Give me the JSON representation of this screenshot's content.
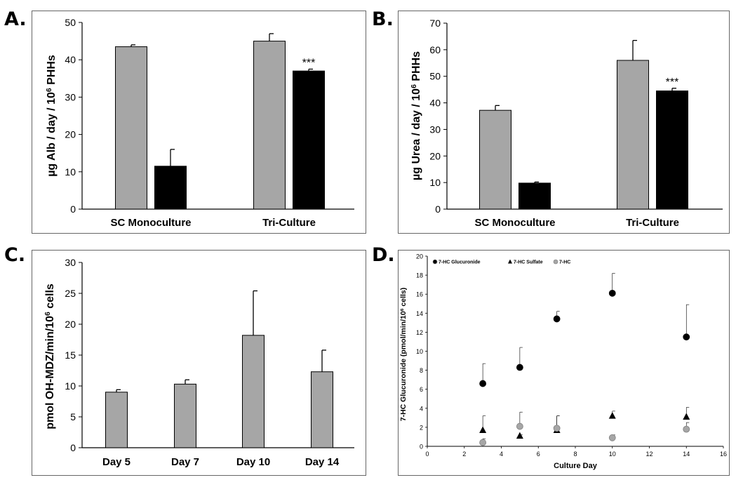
{
  "panel_letters": {
    "a": "A.",
    "b": "B.",
    "c": "C.",
    "d": "D."
  },
  "colors": {
    "gray_bar": "#a6a6a6",
    "black_bar": "#000000",
    "gray_marker": "#a6a6a6"
  },
  "chart_data": [
    {
      "id": "A",
      "type": "bar",
      "ylabel": "µg Alb / day / 10^6 PHHs",
      "ylabel_parts": [
        "µg Alb / day / 10",
        "6",
        " PHHs"
      ],
      "ylim": [
        0,
        50
      ],
      "yticks": [
        0,
        10,
        20,
        30,
        40,
        50
      ],
      "categories": [
        "SC Monoculture",
        "Tri-Culture"
      ],
      "series": [
        {
          "color": "#a6a6a6",
          "values": [
            43.5,
            45.0
          ],
          "errors": [
            0.5,
            2.0
          ]
        },
        {
          "color": "#000000",
          "values": [
            11.5,
            37.0
          ],
          "errors": [
            4.5,
            0.5
          ]
        }
      ],
      "annotations": [
        {
          "category": 1,
          "series": 1,
          "text": "***"
        }
      ]
    },
    {
      "id": "B",
      "type": "bar",
      "ylabel": "µg Urea / day / 10^6 PHHs",
      "ylabel_parts": [
        "µg Urea / day / 10",
        "6",
        " PHHs"
      ],
      "ylim": [
        0,
        70
      ],
      "yticks": [
        0,
        10,
        20,
        30,
        40,
        50,
        60,
        70
      ],
      "categories": [
        "SC Monoculture",
        "Tri-Culture"
      ],
      "series": [
        {
          "color": "#a6a6a6",
          "values": [
            37.2,
            56.0
          ],
          "errors": [
            1.8,
            7.5
          ]
        },
        {
          "color": "#000000",
          "values": [
            9.8,
            44.5
          ],
          "errors": [
            0.4,
            1.0
          ]
        }
      ],
      "annotations": [
        {
          "category": 1,
          "series": 1,
          "text": "***"
        }
      ]
    },
    {
      "id": "C",
      "type": "bar",
      "ylabel": "pmol OH-MDZ/min/10^6 cells",
      "ylabel_parts": [
        "pmol OH-MDZ/min/10",
        "6",
        " cells"
      ],
      "ylim": [
        0,
        30
      ],
      "yticks": [
        0,
        5,
        10,
        15,
        20,
        25,
        30
      ],
      "categories": [
        "Day 5",
        "Day 7",
        "Day 10",
        "Day 14"
      ],
      "series": [
        {
          "color": "#a6a6a6",
          "values": [
            9.0,
            10.3,
            18.2,
            12.3
          ],
          "errors": [
            0.4,
            0.7,
            7.2,
            3.5
          ]
        }
      ]
    },
    {
      "id": "D",
      "type": "scatter",
      "xlabel": "Culture Day",
      "ylabel": "7-HC Glucuronide (pmol/min/10^6 cells)",
      "ylabel_parts": [
        "7-HC Glucuronide (pmol/min/10",
        "6",
        " cells)"
      ],
      "xlim": [
        0,
        16
      ],
      "ylim": [
        0,
        20
      ],
      "xticks": [
        0,
        2,
        4,
        6,
        8,
        10,
        12,
        14,
        16
      ],
      "yticks": [
        0,
        2,
        4,
        6,
        8,
        10,
        12,
        14,
        16,
        18,
        20
      ],
      "legend_position": "top-left",
      "series": [
        {
          "name": "7-HC Glucuronide",
          "marker": "circle",
          "color": "#000000",
          "x": [
            3,
            5,
            7,
            10,
            14
          ],
          "y": [
            6.6,
            8.3,
            13.4,
            16.1,
            11.5
          ],
          "errors": [
            2.1,
            2.1,
            0.8,
            2.1,
            3.4
          ]
        },
        {
          "name": "7-HC Sulfate",
          "marker": "triangle",
          "color": "#000000",
          "x": [
            3,
            5,
            7,
            10,
            14
          ],
          "y": [
            1.7,
            1.1,
            1.7,
            3.2,
            3.1
          ],
          "errors": [
            1.5,
            0.1,
            1.5,
            0.5,
            1.0
          ]
        },
        {
          "name": "7-HC",
          "marker": "circle",
          "color": "#a6a6a6",
          "x": [
            3,
            5,
            7,
            10,
            14
          ],
          "y": [
            0.4,
            2.1,
            1.9,
            0.9,
            1.8
          ],
          "errors": [
            0.4,
            1.5,
            1.3,
            0.3,
            0.7
          ]
        }
      ]
    }
  ]
}
